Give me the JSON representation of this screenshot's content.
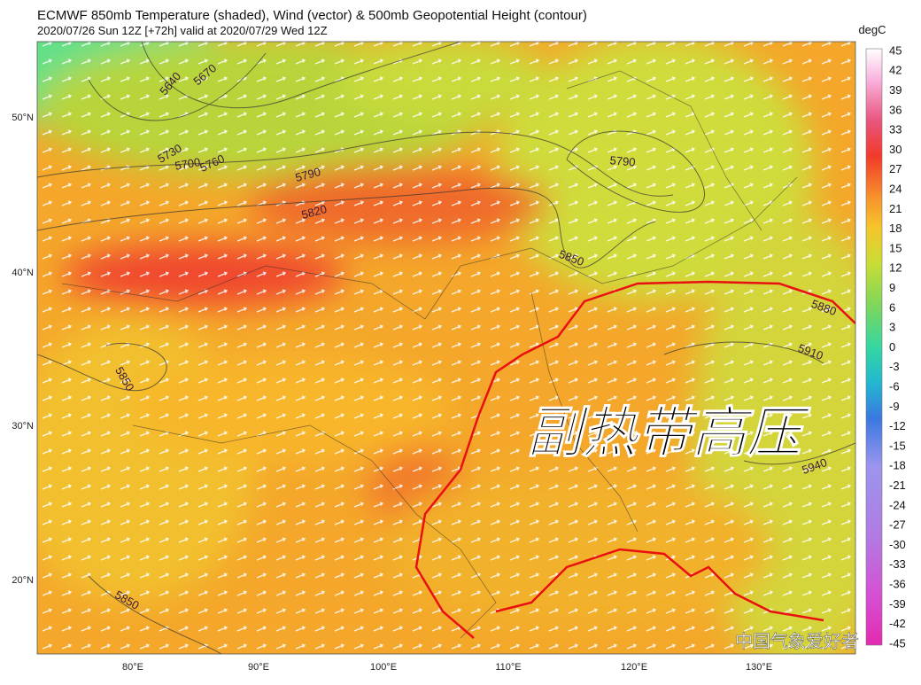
{
  "header": {
    "title": "ECMWF 850mb Temperature (shaded), Wind (vector) & 500mb Geopotential Height (contour)",
    "subtitle": "2020/07/26 Sun 12Z [+72h] valid at 2020/07/29 Wed 12Z"
  },
  "colorbar": {
    "unit": "degC",
    "ticks": [
      45,
      42,
      39,
      36,
      33,
      30,
      27,
      24,
      21,
      18,
      15,
      12,
      9,
      6,
      3,
      0,
      -3,
      -6,
      -9,
      -12,
      -15,
      -18,
      -21,
      -24,
      -27,
      -30,
      -33,
      -36,
      -39,
      -42,
      -45
    ]
  },
  "lat_labels": [
    "50°N",
    "40°N",
    "30°N",
    "20°N"
  ],
  "lon_labels": [
    "80°E",
    "90°E",
    "100°E",
    "110°E",
    "120°E",
    "130°E"
  ],
  "contour_labels": [
    "5640",
    "5670",
    "5700",
    "5730",
    "5760",
    "5790",
    "5820",
    "5790",
    "5850",
    "5880",
    "5910",
    "5850",
    "5940",
    "5850"
  ],
  "annotation": "副热带高压",
  "watermark": "中国气象爱好者"
}
